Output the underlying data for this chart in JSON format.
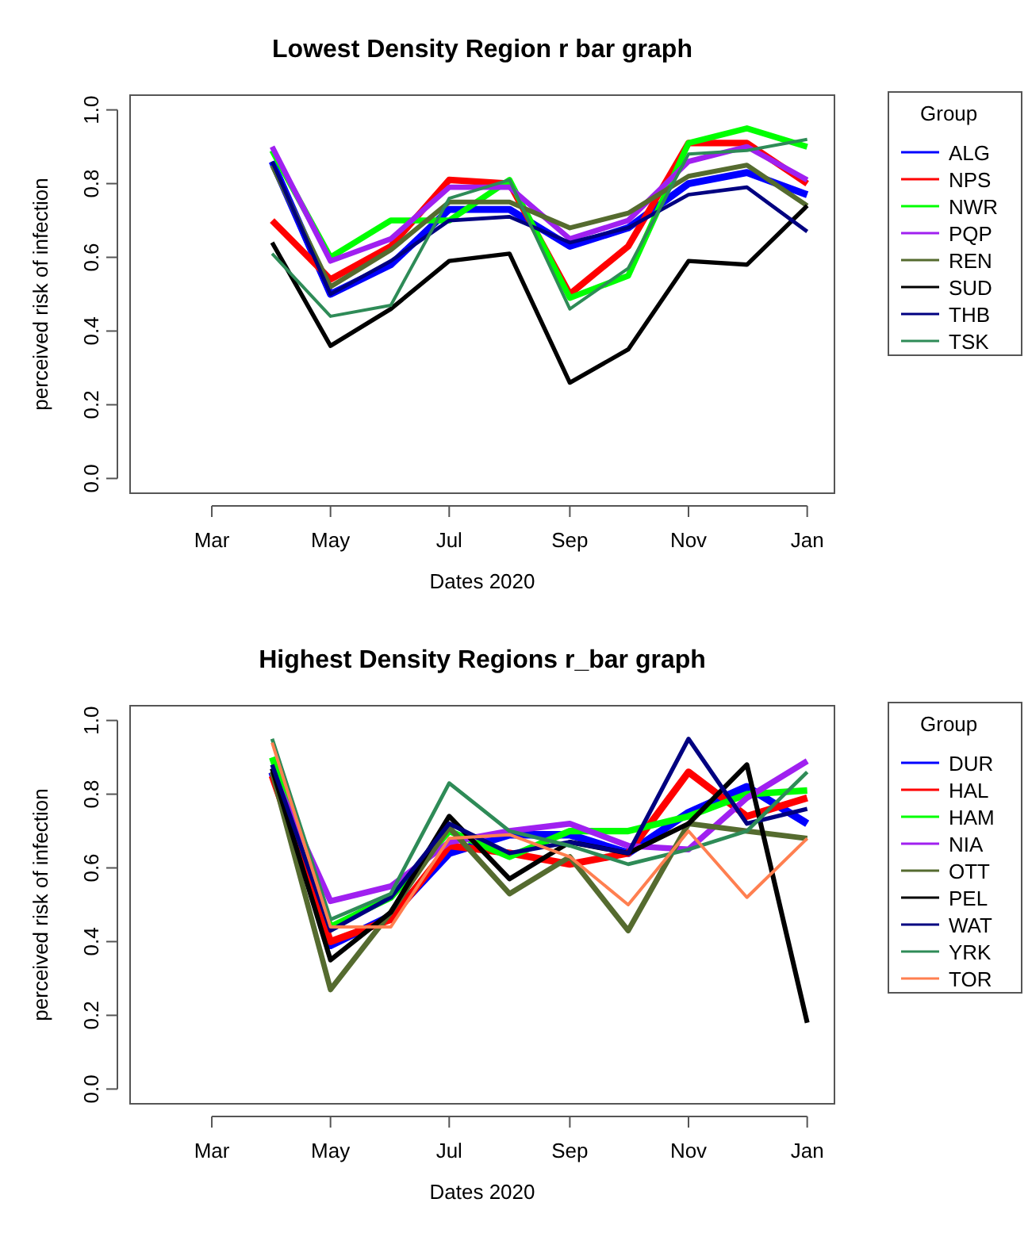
{
  "chart_data": [
    {
      "type": "line",
      "title": "Lowest Density Region r bar graph",
      "xlabel": "Dates 2020",
      "ylabel": "perceived risk of infection",
      "legend_title": "Group",
      "legend": "right",
      "grid": false,
      "marker": "none",
      "line_style": "solid",
      "x": [
        "2020-04-01",
        "2020-05-01",
        "2020-06-01",
        "2020-07-01",
        "2020-08-01",
        "2020-09-01",
        "2020-10-01",
        "2020-11-01",
        "2020-12-01",
        "2021-01-01"
      ],
      "xlim": [
        "2020-01-19",
        "2021-01-15"
      ],
      "xticks": [
        {
          "value": "2020-03-01",
          "label": "Mar"
        },
        {
          "value": "2020-05-01",
          "label": "May"
        },
        {
          "value": "2020-07-01",
          "label": "Jul"
        },
        {
          "value": "2020-09-01",
          "label": "Sep"
        },
        {
          "value": "2020-11-01",
          "label": "Nov"
        },
        {
          "value": "2021-01-01",
          "label": "Jan"
        }
      ],
      "ylim": [
        -0.04,
        1.04
      ],
      "yticks": [
        {
          "value": 0,
          "label": "0.0"
        },
        {
          "value": 0.2,
          "label": "0.2"
        },
        {
          "value": 0.4,
          "label": "0.4"
        },
        {
          "value": 0.6,
          "label": "0.6"
        },
        {
          "value": 0.8,
          "label": "0.8"
        },
        {
          "value": 1,
          "label": "1.0"
        }
      ],
      "series": [
        {
          "name": "ALG",
          "color": "#0000ff",
          "values": [
            0.86,
            0.5,
            0.58,
            0.73,
            0.73,
            0.63,
            0.68,
            0.8,
            0.83,
            0.77
          ]
        },
        {
          "name": "NPS",
          "color": "#ff0000",
          "values": [
            0.7,
            0.54,
            0.63,
            0.81,
            0.8,
            0.5,
            0.63,
            0.91,
            0.91,
            0.8
          ]
        },
        {
          "name": "NWR",
          "color": "#00ff00",
          "values": [
            0.89,
            0.6,
            0.7,
            0.7,
            0.81,
            0.49,
            0.55,
            0.91,
            0.95,
            0.9
          ]
        },
        {
          "name": "PQP",
          "color": "#a020f0",
          "values": [
            0.9,
            0.59,
            0.65,
            0.79,
            0.79,
            0.65,
            0.7,
            0.86,
            0.9,
            0.81
          ]
        },
        {
          "name": "REN",
          "color": "#556b2f",
          "values": [
            0.85,
            0.52,
            0.62,
            0.75,
            0.75,
            0.68,
            0.72,
            0.82,
            0.85,
            0.74
          ]
        },
        {
          "name": "SUD",
          "color": "#000000",
          "values": [
            0.64,
            0.36,
            0.46,
            0.59,
            0.61,
            0.26,
            0.35,
            0.59,
            0.58,
            0.74
          ]
        },
        {
          "name": "THB",
          "color": "#000080",
          "values": [
            0.86,
            0.5,
            0.59,
            0.7,
            0.71,
            0.64,
            0.68,
            0.77,
            0.79,
            0.67
          ]
        },
        {
          "name": "TSK",
          "color": "#2e8b57",
          "values": [
            0.61,
            0.44,
            0.47,
            0.76,
            0.81,
            0.46,
            0.57,
            0.88,
            0.89,
            0.92
          ]
        }
      ]
    },
    {
      "type": "line",
      "title": "Highest Density Regions r_bar graph",
      "xlabel": "Dates 2020",
      "ylabel": "perceived risk of infection",
      "legend_title": "Group",
      "legend": "right",
      "grid": false,
      "marker": "none",
      "line_style": "solid",
      "x": [
        "2020-04-01",
        "2020-05-01",
        "2020-06-01",
        "2020-07-01",
        "2020-08-01",
        "2020-09-01",
        "2020-10-01",
        "2020-11-01",
        "2020-12-01",
        "2021-01-01"
      ],
      "xlim": [
        "2020-01-19",
        "2021-01-15"
      ],
      "xticks": [
        {
          "value": "2020-03-01",
          "label": "Mar"
        },
        {
          "value": "2020-05-01",
          "label": "May"
        },
        {
          "value": "2020-07-01",
          "label": "Jul"
        },
        {
          "value": "2020-09-01",
          "label": "Sep"
        },
        {
          "value": "2020-11-01",
          "label": "Nov"
        },
        {
          "value": "2021-01-01",
          "label": "Jan"
        }
      ],
      "ylim": [
        -0.04,
        1.04
      ],
      "yticks": [
        {
          "value": 0,
          "label": "0.0"
        },
        {
          "value": 0.2,
          "label": "0.2"
        },
        {
          "value": 0.4,
          "label": "0.4"
        },
        {
          "value": 0.6,
          "label": "0.6"
        },
        {
          "value": 0.8,
          "label": "0.8"
        },
        {
          "value": 1,
          "label": "1.0"
        }
      ],
      "series": [
        {
          "name": "DUR",
          "color": "#0000ff",
          "values": [
            0.86,
            0.39,
            0.47,
            0.64,
            0.69,
            0.69,
            0.64,
            0.75,
            0.82,
            0.72
          ]
        },
        {
          "name": "HAL",
          "color": "#ff0000",
          "values": [
            0.85,
            0.4,
            0.46,
            0.66,
            0.64,
            0.61,
            0.64,
            0.86,
            0.74,
            0.79
          ]
        },
        {
          "name": "HAM",
          "color": "#00ff00",
          "values": [
            0.9,
            0.44,
            0.52,
            0.7,
            0.63,
            0.7,
            0.7,
            0.74,
            0.8,
            0.81
          ]
        },
        {
          "name": "NIA",
          "color": "#a020f0",
          "values": [
            0.86,
            0.51,
            0.55,
            0.67,
            0.7,
            0.72,
            0.66,
            0.65,
            0.79,
            0.89
          ]
        },
        {
          "name": "OTT",
          "color": "#556b2f",
          "values": [
            0.86,
            0.27,
            0.48,
            0.71,
            0.53,
            0.63,
            0.43,
            0.72,
            0.7,
            0.68
          ]
        },
        {
          "name": "PEL",
          "color": "#000000",
          "values": [
            0.87,
            0.35,
            0.48,
            0.74,
            0.57,
            0.67,
            0.64,
            0.72,
            0.88,
            0.18
          ]
        },
        {
          "name": "WAT",
          "color": "#000080",
          "values": [
            0.88,
            0.43,
            0.52,
            0.72,
            0.64,
            0.67,
            0.64,
            0.95,
            0.72,
            0.76
          ]
        },
        {
          "name": "YRK",
          "color": "#2e8b57",
          "values": [
            0.95,
            0.46,
            0.53,
            0.83,
            0.7,
            0.66,
            0.61,
            0.65,
            0.7,
            0.86
          ]
        },
        {
          "name": "TOR",
          "color": "#ff7f50",
          "values": [
            0.94,
            0.44,
            0.44,
            0.68,
            0.69,
            0.63,
            0.5,
            0.7,
            0.52,
            0.68
          ]
        }
      ]
    }
  ]
}
